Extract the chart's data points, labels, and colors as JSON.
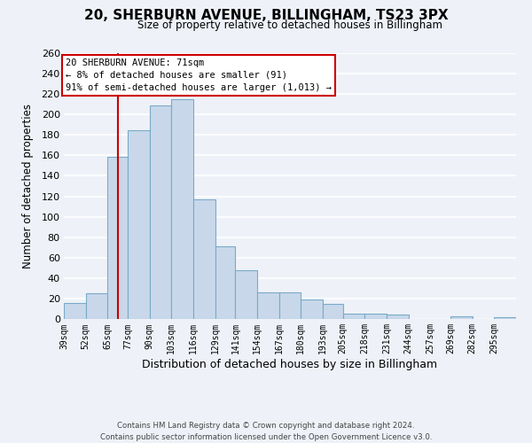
{
  "title": "20, SHERBURN AVENUE, BILLINGHAM, TS23 3PX",
  "subtitle": "Size of property relative to detached houses in Billingham",
  "xlabel": "Distribution of detached houses by size in Billingham",
  "ylabel": "Number of detached properties",
  "bar_color": "#c8d8ea",
  "bar_edge_color": "#7aaac8",
  "categories": [
    "39sqm",
    "52sqm",
    "65sqm",
    "77sqm",
    "90sqm",
    "103sqm",
    "116sqm",
    "129sqm",
    "141sqm",
    "154sqm",
    "167sqm",
    "180sqm",
    "193sqm",
    "205sqm",
    "218sqm",
    "231sqm",
    "244sqm",
    "257sqm",
    "269sqm",
    "282sqm",
    "295sqm"
  ],
  "values": [
    16,
    25,
    159,
    185,
    209,
    215,
    117,
    71,
    48,
    26,
    26,
    19,
    15,
    5,
    5,
    4,
    0,
    0,
    3,
    0,
    2
  ],
  "ylim": [
    0,
    260
  ],
  "yticks": [
    0,
    20,
    40,
    60,
    80,
    100,
    120,
    140,
    160,
    180,
    200,
    220,
    240,
    260
  ],
  "property_line_x": 71,
  "bin_edges": [
    39,
    52,
    65,
    77,
    90,
    103,
    116,
    129,
    141,
    154,
    167,
    180,
    193,
    205,
    218,
    231,
    244,
    257,
    269,
    282,
    295,
    308
  ],
  "annotation_line1": "20 SHERBURN AVENUE: 71sqm",
  "annotation_line2": "← 8% of detached houses are smaller (91)",
  "annotation_line3": "91% of semi-detached houses are larger (1,013) →",
  "annotation_box_color": "#ffffff",
  "annotation_box_edge_color": "#cc0000",
  "property_line_color": "#cc0000",
  "footer1": "Contains HM Land Registry data © Crown copyright and database right 2024.",
  "footer2": "Contains public sector information licensed under the Open Government Licence v3.0.",
  "background_color": "#eef2f8",
  "grid_color": "#ffffff"
}
